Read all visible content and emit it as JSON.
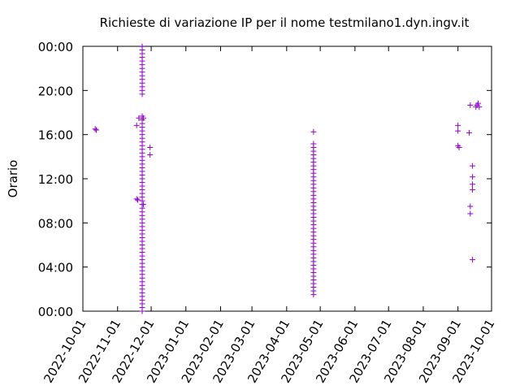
{
  "chart_data": {
    "type": "scatter",
    "title": "Richieste di variazione IP per il nome testmilano1.dyn.ingv.it",
    "xlabel": "",
    "ylabel": "Orario",
    "xlim": [
      "2022-10-01",
      "2023-10-01"
    ],
    "ylim": [
      "00:00",
      "24:00"
    ],
    "x_tick_labels": [
      "2022-10-01",
      "2022-11-01",
      "2022-12-01",
      "2023-01-01",
      "2023-02-01",
      "2023-03-01",
      "2023-04-01",
      "2023-05-01",
      "2023-06-01",
      "2023-07-01",
      "2023-08-01",
      "2023-09-01",
      "2023-10-01"
    ],
    "y_tick_labels": [
      "00:00",
      "04:00",
      "08:00",
      "12:00",
      "16:00",
      "20:00",
      "00:00"
    ],
    "grid": false,
    "marker": "+",
    "color": "#9400d3",
    "points": [
      [
        "2022-10-12",
        "16:30"
      ],
      [
        "2022-10-13",
        "16:25"
      ],
      [
        "2022-11-18",
        "16:50"
      ],
      [
        "2022-11-18",
        "10:10"
      ],
      [
        "2022-11-19",
        "10:05"
      ],
      [
        "2022-11-20",
        "17:30"
      ],
      [
        "2022-11-30",
        "14:50"
      ],
      [
        "2022-11-30",
        "14:10"
      ],
      [
        "2022-11-23",
        "00:00"
      ],
      [
        "2022-11-23",
        "00:20"
      ],
      [
        "2022-11-23",
        "00:40"
      ],
      [
        "2022-11-23",
        "01:00"
      ],
      [
        "2022-11-23",
        "01:20"
      ],
      [
        "2022-11-23",
        "01:40"
      ],
      [
        "2022-11-23",
        "02:00"
      ],
      [
        "2022-11-23",
        "02:20"
      ],
      [
        "2022-11-23",
        "02:40"
      ],
      [
        "2022-11-23",
        "03:00"
      ],
      [
        "2022-11-23",
        "03:20"
      ],
      [
        "2022-11-23",
        "03:40"
      ],
      [
        "2022-11-23",
        "04:00"
      ],
      [
        "2022-11-23",
        "04:20"
      ],
      [
        "2022-11-23",
        "04:40"
      ],
      [
        "2022-11-23",
        "05:00"
      ],
      [
        "2022-11-23",
        "05:20"
      ],
      [
        "2022-11-23",
        "05:40"
      ],
      [
        "2022-11-23",
        "06:00"
      ],
      [
        "2022-11-23",
        "06:20"
      ],
      [
        "2022-11-23",
        "06:40"
      ],
      [
        "2022-11-23",
        "07:00"
      ],
      [
        "2022-11-23",
        "07:20"
      ],
      [
        "2022-11-23",
        "07:40"
      ],
      [
        "2022-11-23",
        "08:00"
      ],
      [
        "2022-11-23",
        "08:20"
      ],
      [
        "2022-11-23",
        "08:40"
      ],
      [
        "2022-11-23",
        "09:00"
      ],
      [
        "2022-11-23",
        "09:20"
      ],
      [
        "2022-11-23",
        "09:40"
      ],
      [
        "2022-11-24",
        "09:40"
      ],
      [
        "2022-11-23",
        "10:00"
      ],
      [
        "2022-11-23",
        "10:20"
      ],
      [
        "2022-11-23",
        "10:40"
      ],
      [
        "2022-11-23",
        "11:00"
      ],
      [
        "2022-11-23",
        "11:20"
      ],
      [
        "2022-11-23",
        "11:40"
      ],
      [
        "2022-11-23",
        "12:00"
      ],
      [
        "2022-11-23",
        "12:20"
      ],
      [
        "2022-11-23",
        "12:40"
      ],
      [
        "2022-11-23",
        "13:00"
      ],
      [
        "2022-11-23",
        "13:20"
      ],
      [
        "2022-11-23",
        "13:40"
      ],
      [
        "2022-11-23",
        "14:00"
      ],
      [
        "2022-11-23",
        "14:20"
      ],
      [
        "2022-11-23",
        "14:40"
      ],
      [
        "2022-11-23",
        "15:00"
      ],
      [
        "2022-11-23",
        "15:20"
      ],
      [
        "2022-11-23",
        "15:40"
      ],
      [
        "2022-11-23",
        "16:00"
      ],
      [
        "2022-11-23",
        "16:20"
      ],
      [
        "2022-11-23",
        "16:40"
      ],
      [
        "2022-11-23",
        "17:00"
      ],
      [
        "2022-11-23",
        "17:20"
      ],
      [
        "2022-11-23",
        "17:40"
      ],
      [
        "2022-11-24",
        "17:30"
      ],
      [
        "2022-11-23",
        "19:40"
      ],
      [
        "2022-11-23",
        "20:00"
      ],
      [
        "2022-11-23",
        "20:20"
      ],
      [
        "2022-11-23",
        "20:40"
      ],
      [
        "2022-11-23",
        "21:00"
      ],
      [
        "2022-11-23",
        "21:20"
      ],
      [
        "2022-11-23",
        "21:40"
      ],
      [
        "2022-11-23",
        "22:00"
      ],
      [
        "2022-11-23",
        "22:20"
      ],
      [
        "2022-11-23",
        "22:40"
      ],
      [
        "2022-11-23",
        "23:00"
      ],
      [
        "2022-11-23",
        "23:20"
      ],
      [
        "2022-11-23",
        "23:40"
      ],
      [
        "2022-11-23",
        "23:59"
      ],
      [
        "2023-04-25",
        "01:30"
      ],
      [
        "2023-04-25",
        "01:50"
      ],
      [
        "2023-04-25",
        "02:10"
      ],
      [
        "2023-04-25",
        "02:30"
      ],
      [
        "2023-04-25",
        "02:50"
      ],
      [
        "2023-04-25",
        "03:10"
      ],
      [
        "2023-04-25",
        "03:30"
      ],
      [
        "2023-04-25",
        "03:50"
      ],
      [
        "2023-04-25",
        "04:10"
      ],
      [
        "2023-04-25",
        "04:30"
      ],
      [
        "2023-04-25",
        "04:50"
      ],
      [
        "2023-04-25",
        "05:10"
      ],
      [
        "2023-04-25",
        "05:30"
      ],
      [
        "2023-04-25",
        "05:50"
      ],
      [
        "2023-04-25",
        "06:10"
      ],
      [
        "2023-04-25",
        "06:30"
      ],
      [
        "2023-04-25",
        "06:50"
      ],
      [
        "2023-04-25",
        "07:10"
      ],
      [
        "2023-04-25",
        "07:30"
      ],
      [
        "2023-04-25",
        "07:50"
      ],
      [
        "2023-04-25",
        "08:10"
      ],
      [
        "2023-04-25",
        "08:30"
      ],
      [
        "2023-04-25",
        "08:50"
      ],
      [
        "2023-04-25",
        "09:10"
      ],
      [
        "2023-04-25",
        "09:30"
      ],
      [
        "2023-04-25",
        "09:50"
      ],
      [
        "2023-04-25",
        "10:10"
      ],
      [
        "2023-04-25",
        "10:30"
      ],
      [
        "2023-04-25",
        "10:50"
      ],
      [
        "2023-04-25",
        "11:10"
      ],
      [
        "2023-04-25",
        "11:30"
      ],
      [
        "2023-04-25",
        "11:50"
      ],
      [
        "2023-04-25",
        "12:10"
      ],
      [
        "2023-04-25",
        "12:30"
      ],
      [
        "2023-04-25",
        "12:50"
      ],
      [
        "2023-04-25",
        "13:10"
      ],
      [
        "2023-04-25",
        "13:30"
      ],
      [
        "2023-04-25",
        "13:50"
      ],
      [
        "2023-04-25",
        "14:10"
      ],
      [
        "2023-04-25",
        "14:30"
      ],
      [
        "2023-04-25",
        "14:50"
      ],
      [
        "2023-04-25",
        "15:10"
      ],
      [
        "2023-04-25",
        "16:15"
      ],
      [
        "2023-09-01",
        "16:50"
      ],
      [
        "2023-09-01",
        "16:20"
      ],
      [
        "2023-09-01",
        "15:00"
      ],
      [
        "2023-09-02",
        "14:50"
      ],
      [
        "2023-09-12",
        "18:40"
      ],
      [
        "2023-09-11",
        "16:10"
      ],
      [
        "2023-09-14",
        "13:10"
      ],
      [
        "2023-09-14",
        "12:10"
      ],
      [
        "2023-09-14",
        "11:30"
      ],
      [
        "2023-09-14",
        "11:00"
      ],
      [
        "2023-09-12",
        "09:30"
      ],
      [
        "2023-09-12",
        "08:50"
      ],
      [
        "2023-09-14",
        "04:40"
      ],
      [
        "2023-09-17",
        "18:30"
      ],
      [
        "2023-09-18",
        "18:40"
      ],
      [
        "2023-09-19",
        "18:50"
      ],
      [
        "2023-09-20",
        "18:30"
      ]
    ]
  }
}
